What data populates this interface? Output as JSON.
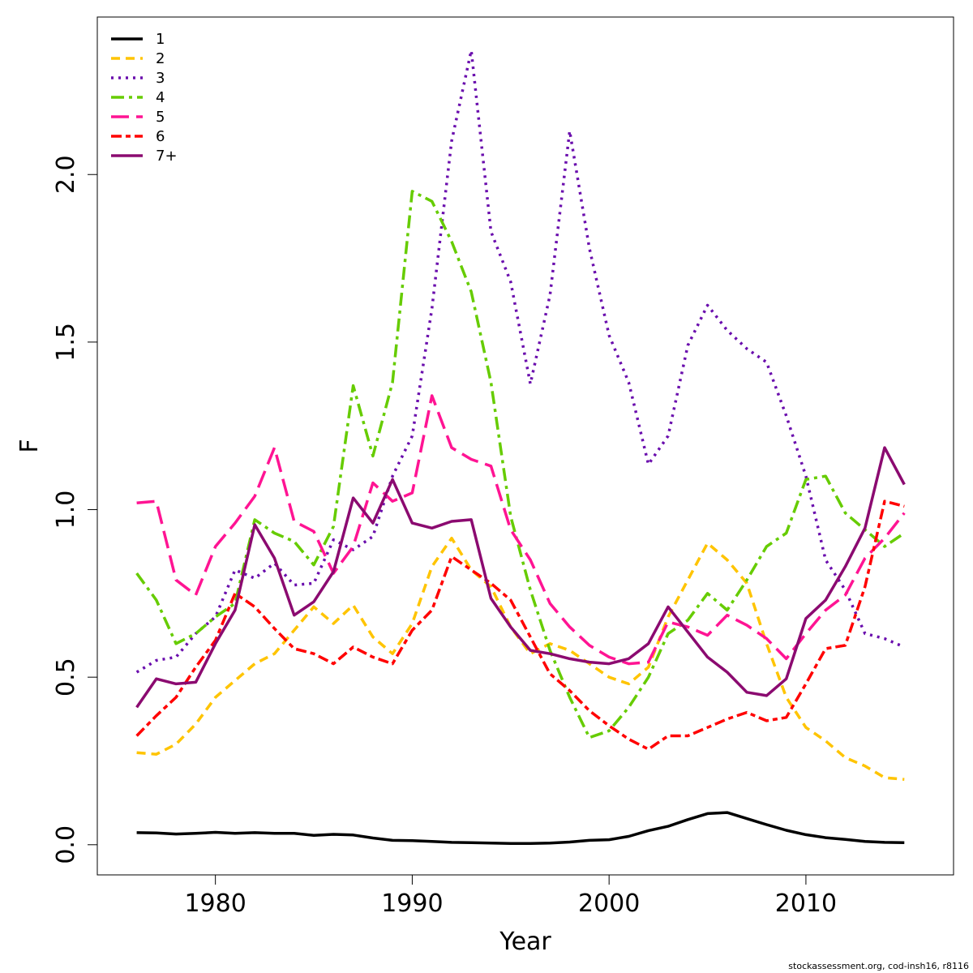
{
  "chart_data": {
    "type": "line",
    "title": "",
    "xlabel": "Year",
    "ylabel": "F",
    "xlim": [
      1974,
      2017.5
    ],
    "ylim": [
      -0.09,
      2.47
    ],
    "x_ticks": [
      1980,
      1990,
      2000,
      2010
    ],
    "x_tick_labels": [
      "1980",
      "1990",
      "2000",
      "2010"
    ],
    "y_ticks": [
      0.0,
      0.5,
      1.0,
      1.5,
      2.0
    ],
    "y_tick_labels": [
      "0.0",
      "0.5",
      "1.0",
      "1.5",
      "2.0"
    ],
    "legend_position": "top-left",
    "credit": "stockassessment.org, cod-insh16, r8116",
    "x": [
      1976,
      1977,
      1978,
      1979,
      1980,
      1981,
      1982,
      1983,
      1984,
      1985,
      1986,
      1987,
      1988,
      1989,
      1990,
      1991,
      1992,
      1993,
      1994,
      1995,
      1996,
      1997,
      1998,
      1999,
      2000,
      2001,
      2002,
      2003,
      2004,
      2005,
      2006,
      2007,
      2008,
      2009,
      2010,
      2011,
      2012,
      2013,
      2014,
      2015
    ],
    "series": [
      {
        "name": "1",
        "color": "#000000",
        "dash": "solid",
        "values": [
          0.036,
          0.035,
          0.032,
          0.034,
          0.037,
          0.034,
          0.036,
          0.034,
          0.034,
          0.028,
          0.031,
          0.029,
          0.02,
          0.013,
          0.012,
          0.01,
          0.007,
          0.006,
          0.005,
          0.004,
          0.004,
          0.005,
          0.008,
          0.013,
          0.015,
          0.025,
          0.042,
          0.055,
          0.075,
          0.093,
          0.096,
          0.078,
          0.06,
          0.043,
          0.03,
          0.021,
          0.016,
          0.01,
          0.007,
          0.006
        ]
      },
      {
        "name": "2",
        "color": "#FFC400",
        "dash": "dashed",
        "values": [
          0.275,
          0.27,
          0.3,
          0.36,
          0.44,
          0.49,
          0.54,
          0.57,
          0.64,
          0.71,
          0.66,
          0.715,
          0.62,
          0.57,
          0.66,
          0.83,
          0.915,
          0.82,
          0.77,
          0.65,
          0.57,
          0.6,
          0.58,
          0.54,
          0.5,
          0.48,
          0.53,
          0.68,
          0.79,
          0.9,
          0.85,
          0.78,
          0.6,
          0.44,
          0.35,
          0.31,
          0.26,
          0.235,
          0.2,
          0.195
        ]
      },
      {
        "name": "3",
        "color": "#6A0DAD",
        "dash": "dotted",
        "values": [
          0.515,
          0.55,
          0.56,
          0.63,
          0.68,
          0.82,
          0.795,
          0.84,
          0.775,
          0.78,
          0.91,
          0.88,
          0.92,
          1.1,
          1.22,
          1.6,
          2.1,
          2.37,
          1.83,
          1.68,
          1.375,
          1.64,
          2.13,
          1.78,
          1.52,
          1.38,
          1.135,
          1.22,
          1.49,
          1.61,
          1.535,
          1.48,
          1.44,
          1.28,
          1.1,
          0.85,
          0.76,
          0.63,
          0.615,
          0.59
        ]
      },
      {
        "name": "4",
        "color": "#66CC00",
        "dash": "dashdot",
        "values": [
          0.81,
          0.73,
          0.6,
          0.63,
          0.68,
          0.72,
          0.97,
          0.93,
          0.905,
          0.835,
          0.95,
          1.37,
          1.16,
          1.38,
          1.95,
          1.92,
          1.8,
          1.65,
          1.38,
          0.98,
          0.76,
          0.58,
          0.44,
          0.32,
          0.34,
          0.41,
          0.5,
          0.63,
          0.67,
          0.75,
          0.7,
          0.79,
          0.89,
          0.93,
          1.09,
          1.1,
          0.99,
          0.94,
          0.89,
          0.93
        ]
      },
      {
        "name": "5",
        "color": "#FF1493",
        "dash": "longdash",
        "values": [
          1.02,
          1.025,
          0.79,
          0.745,
          0.89,
          0.96,
          1.04,
          1.185,
          0.965,
          0.935,
          0.81,
          0.89,
          1.08,
          1.025,
          1.05,
          1.34,
          1.185,
          1.15,
          1.13,
          0.94,
          0.85,
          0.72,
          0.65,
          0.595,
          0.56,
          0.54,
          0.545,
          0.665,
          0.65,
          0.625,
          0.685,
          0.655,
          0.615,
          0.555,
          0.63,
          0.7,
          0.745,
          0.855,
          0.915,
          0.99
        ]
      },
      {
        "name": "6",
        "color": "#FF0000",
        "dash": "twodash",
        "values": [
          0.325,
          0.385,
          0.44,
          0.53,
          0.61,
          0.75,
          0.71,
          0.645,
          0.585,
          0.57,
          0.54,
          0.59,
          0.56,
          0.54,
          0.64,
          0.7,
          0.86,
          0.82,
          0.78,
          0.73,
          0.62,
          0.51,
          0.46,
          0.4,
          0.355,
          0.315,
          0.285,
          0.325,
          0.325,
          0.35,
          0.375,
          0.395,
          0.37,
          0.38,
          0.48,
          0.585,
          0.595,
          0.77,
          1.025,
          1.01
        ]
      },
      {
        "name": "7+",
        "color": "#8B0A70",
        "dash": "solid",
        "values": [
          0.41,
          0.495,
          0.48,
          0.485,
          0.6,
          0.7,
          0.955,
          0.855,
          0.685,
          0.725,
          0.815,
          1.035,
          0.96,
          1.09,
          0.96,
          0.945,
          0.965,
          0.97,
          0.735,
          0.65,
          0.58,
          0.57,
          0.555,
          0.545,
          0.54,
          0.555,
          0.6,
          0.71,
          0.635,
          0.56,
          0.515,
          0.455,
          0.445,
          0.495,
          0.675,
          0.73,
          0.83,
          0.945,
          1.185,
          1.075
        ]
      }
    ]
  }
}
